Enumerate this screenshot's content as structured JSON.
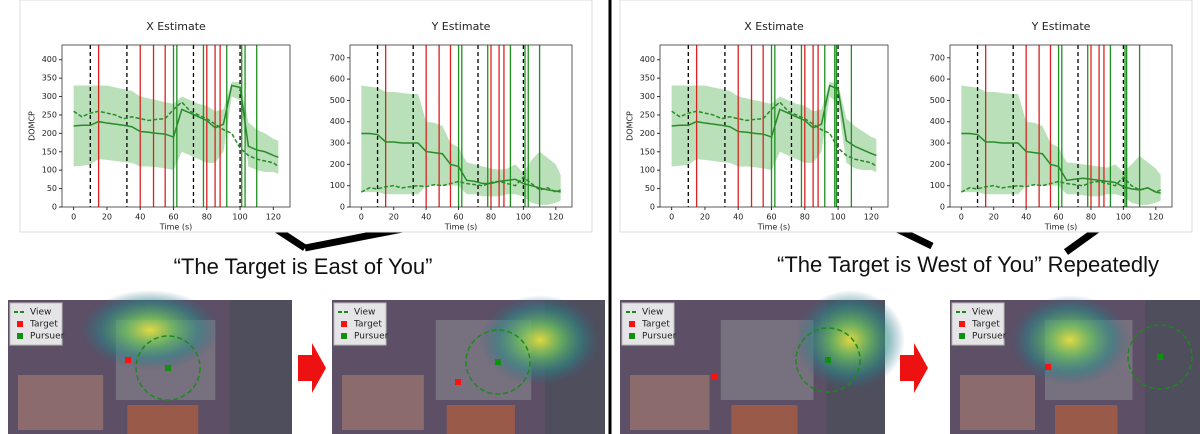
{
  "chart_data": [
    {
      "type": "line",
      "title": "X Estimate",
      "xlabel": "Time (s)",
      "ylabel": "DOMCP",
      "x": [
        0,
        5,
        10,
        15,
        20,
        25,
        30,
        35,
        40,
        45,
        50,
        55,
        60,
        65,
        70,
        75,
        80,
        85,
        90,
        95,
        100,
        105,
        110,
        115,
        120,
        123
      ],
      "series": [
        {
          "color": "#2a8a2a",
          "style": "solid",
          "values": [
            220,
            222,
            222,
            232,
            228,
            225,
            222,
            218,
            205,
            203,
            200,
            198,
            190,
            265,
            255,
            245,
            235,
            215,
            225,
            330,
            325,
            165,
            155,
            150,
            140,
            135
          ]
        },
        {
          "color": "#2a8a2a",
          "style": "dashed",
          "values": [
            260,
            245,
            255,
            260,
            255,
            250,
            240,
            245,
            240,
            235,
            238,
            240,
            265,
            285,
            260,
            250,
            240,
            225,
            210,
            200,
            160,
            140,
            130,
            125,
            120,
            110
          ]
        }
      ],
      "band": {
        "color": "#7fc77f",
        "upper": [
          330,
          330,
          330,
          330,
          330,
          325,
          320,
          315,
          300,
          295,
          290,
          285,
          280,
          300,
          290,
          280,
          275,
          260,
          265,
          340,
          340,
          230,
          210,
          200,
          185,
          180
        ],
        "lower": [
          110,
          112,
          115,
          130,
          128,
          125,
          122,
          120,
          110,
          110,
          108,
          105,
          100,
          150,
          140,
          130,
          120,
          120,
          150,
          300,
          290,
          110,
          100,
          95,
          95,
          90
        ]
      },
      "vlines": [
        {
          "color": "#000000",
          "style": "dashed",
          "x": [
            10,
            32,
            72,
            100
          ]
        },
        {
          "color": "#e02020",
          "style": "solid",
          "x": [
            15,
            40,
            48,
            55,
            80,
            85,
            88
          ]
        },
        {
          "color": "#1f8f1f",
          "style": "solid",
          "x": [
            60,
            62,
            78,
            92,
            101,
            103,
            110
          ]
        }
      ],
      "xlim": [
        -7,
        130
      ],
      "xticks": [
        0,
        20,
        40,
        60,
        80,
        100,
        120
      ],
      "ylim": [
        0,
        440
      ],
      "yticks": [
        0,
        50,
        100,
        150,
        200,
        250,
        300,
        350,
        400
      ]
    },
    {
      "type": "line",
      "title": "Y Estimate",
      "xlabel": "Time (s)",
      "x": [
        0,
        5,
        10,
        15,
        20,
        25,
        30,
        35,
        40,
        45,
        50,
        55,
        60,
        65,
        70,
        75,
        80,
        85,
        90,
        95,
        100,
        105,
        110,
        115,
        120,
        123
      ],
      "series": [
        {
          "color": "#2a8a2a",
          "style": "solid",
          "values": [
            345,
            345,
            340,
            305,
            305,
            300,
            300,
            300,
            260,
            255,
            250,
            200,
            190,
            125,
            120,
            110,
            110,
            120,
            125,
            130,
            110,
            100,
            90,
            80,
            75,
            70
          ]
        },
        {
          "color": "#2a8a2a",
          "style": "dashed",
          "values": [
            70,
            90,
            85,
            95,
            100,
            90,
            95,
            100,
            95,
            105,
            100,
            110,
            120,
            110,
            105,
            100,
            115,
            120,
            110,
            100,
            140,
            110,
            80,
            90,
            70,
            80
          ]
        }
      ],
      "band": {
        "color": "#7fc77f",
        "upper": [
          570,
          565,
          560,
          540,
          540,
          535,
          530,
          530,
          400,
          395,
          380,
          300,
          280,
          210,
          200,
          190,
          180,
          175,
          180,
          200,
          160,
          220,
          260,
          230,
          200,
          150
        ],
        "lower": [
          70,
          70,
          70,
          60,
          60,
          60,
          60,
          60,
          100,
          100,
          100,
          100,
          100,
          60,
          60,
          50,
          50,
          50,
          60,
          60,
          50,
          20,
          10,
          10,
          20,
          30
        ]
      },
      "vlines": [
        {
          "color": "#000000",
          "style": "dashed",
          "x": [
            10,
            32,
            72,
            100
          ]
        },
        {
          "color": "#e02020",
          "style": "solid",
          "x": [
            15,
            40,
            48,
            55,
            80,
            85,
            88
          ]
        },
        {
          "color": "#1f8f1f",
          "style": "solid",
          "x": [
            60,
            62,
            78,
            92,
            101,
            103,
            110
          ]
        }
      ],
      "xlim": [
        -7,
        130
      ],
      "xticks": [
        0,
        20,
        40,
        60,
        80,
        100,
        120
      ],
      "ylim": [
        0,
        760
      ],
      "yticks": [
        0,
        100,
        200,
        300,
        400,
        500,
        600,
        700
      ]
    },
    {
      "type": "line",
      "title": "X Estimate",
      "xlabel": "Time (s)",
      "ylabel": "DOMCP",
      "x": [
        0,
        5,
        10,
        15,
        20,
        25,
        30,
        35,
        40,
        45,
        50,
        55,
        60,
        65,
        70,
        75,
        80,
        85,
        90,
        95,
        100,
        105,
        110,
        115,
        120,
        123
      ],
      "series": [
        {
          "color": "#2a8a2a",
          "style": "solid",
          "values": [
            220,
            222,
            222,
            232,
            228,
            225,
            222,
            218,
            205,
            203,
            200,
            198,
            190,
            265,
            255,
            245,
            235,
            215,
            225,
            330,
            320,
            180,
            165,
            155,
            145,
            140
          ]
        },
        {
          "color": "#2a8a2a",
          "style": "dashed",
          "values": [
            260,
            245,
            255,
            260,
            255,
            250,
            240,
            245,
            240,
            235,
            238,
            240,
            265,
            285,
            260,
            250,
            240,
            225,
            210,
            200,
            160,
            140,
            130,
            125,
            120,
            110
          ]
        }
      ],
      "band": {
        "color": "#7fc77f",
        "upper": [
          330,
          330,
          330,
          330,
          330,
          325,
          320,
          315,
          300,
          295,
          290,
          285,
          280,
          300,
          290,
          280,
          275,
          260,
          265,
          340,
          335,
          240,
          220,
          205,
          190,
          185
        ],
        "lower": [
          110,
          112,
          115,
          130,
          128,
          125,
          122,
          120,
          110,
          110,
          108,
          105,
          100,
          150,
          140,
          130,
          120,
          120,
          150,
          300,
          280,
          120,
          105,
          100,
          100,
          95
        ]
      },
      "vlines": [
        {
          "color": "#000000",
          "style": "dashed",
          "x": [
            10,
            32,
            72,
            100
          ]
        },
        {
          "color": "#e02020",
          "style": "solid",
          "x": [
            15,
            40,
            48,
            55,
            80,
            85,
            88
          ]
        },
        {
          "color": "#1f8f1f",
          "style": "solid",
          "x": [
            60,
            62,
            78,
            92,
            98,
            99,
            108
          ]
        }
      ],
      "xlim": [
        -7,
        130
      ],
      "xticks": [
        0,
        20,
        40,
        60,
        80,
        100,
        120
      ],
      "ylim": [
        0,
        440
      ],
      "yticks": [
        0,
        50,
        100,
        150,
        200,
        250,
        300,
        350,
        400
      ]
    },
    {
      "type": "line",
      "title": "Y Estimate",
      "xlabel": "Time (s)",
      "x": [
        0,
        5,
        10,
        15,
        20,
        25,
        30,
        35,
        40,
        45,
        50,
        55,
        60,
        65,
        70,
        75,
        80,
        85,
        90,
        95,
        100,
        105,
        110,
        115,
        120,
        123
      ],
      "series": [
        {
          "color": "#2a8a2a",
          "style": "solid",
          "values": [
            345,
            345,
            340,
            305,
            305,
            300,
            300,
            300,
            260,
            255,
            250,
            200,
            190,
            125,
            130,
            135,
            130,
            125,
            120,
            115,
            95,
            85,
            80,
            90,
            70,
            65
          ]
        },
        {
          "color": "#2a8a2a",
          "style": "dashed",
          "values": [
            70,
            90,
            85,
            95,
            100,
            90,
            95,
            100,
            95,
            105,
            100,
            110,
            120,
            110,
            105,
            100,
            115,
            120,
            110,
            100,
            140,
            100,
            80,
            90,
            70,
            80
          ]
        }
      ],
      "band": {
        "color": "#7fc77f",
        "upper": [
          570,
          565,
          560,
          540,
          540,
          535,
          530,
          530,
          400,
          395,
          380,
          300,
          280,
          210,
          205,
          200,
          195,
          190,
          185,
          200,
          165,
          200,
          240,
          210,
          180,
          150
        ],
        "lower": [
          70,
          70,
          70,
          60,
          60,
          60,
          60,
          60,
          100,
          100,
          100,
          100,
          100,
          60,
          60,
          55,
          50,
          50,
          60,
          60,
          50,
          20,
          10,
          10,
          20,
          30
        ]
      },
      "vlines": [
        {
          "color": "#000000",
          "style": "dashed",
          "x": [
            10,
            32,
            72,
            100
          ]
        },
        {
          "color": "#e02020",
          "style": "solid",
          "x": [
            15,
            40,
            48,
            55,
            80,
            85,
            88
          ]
        },
        {
          "color": "#1f8f1f",
          "style": "solid",
          "x": [
            60,
            62,
            78,
            92,
            101,
            102,
            110
          ]
        }
      ],
      "xlim": [
        -7,
        130
      ],
      "xticks": [
        0,
        20,
        40,
        60,
        80,
        100,
        120
      ],
      "ylim": [
        0,
        760
      ],
      "yticks": [
        0,
        100,
        200,
        300,
        400,
        500,
        600,
        700
      ]
    }
  ],
  "captions": [
    "“The Target is East of You”",
    "“The Target is West of You” Repeatedly"
  ],
  "maps": [
    {
      "legend": [
        "View",
        "Target",
        "Pursuer"
      ]
    },
    {
      "legend": [
        "View",
        "Target",
        "Pursuer"
      ]
    },
    {
      "legend": [
        "View",
        "Target",
        "Pursuer"
      ]
    },
    {
      "legend": [
        "View",
        "Target",
        "Pursuer"
      ]
    }
  ]
}
